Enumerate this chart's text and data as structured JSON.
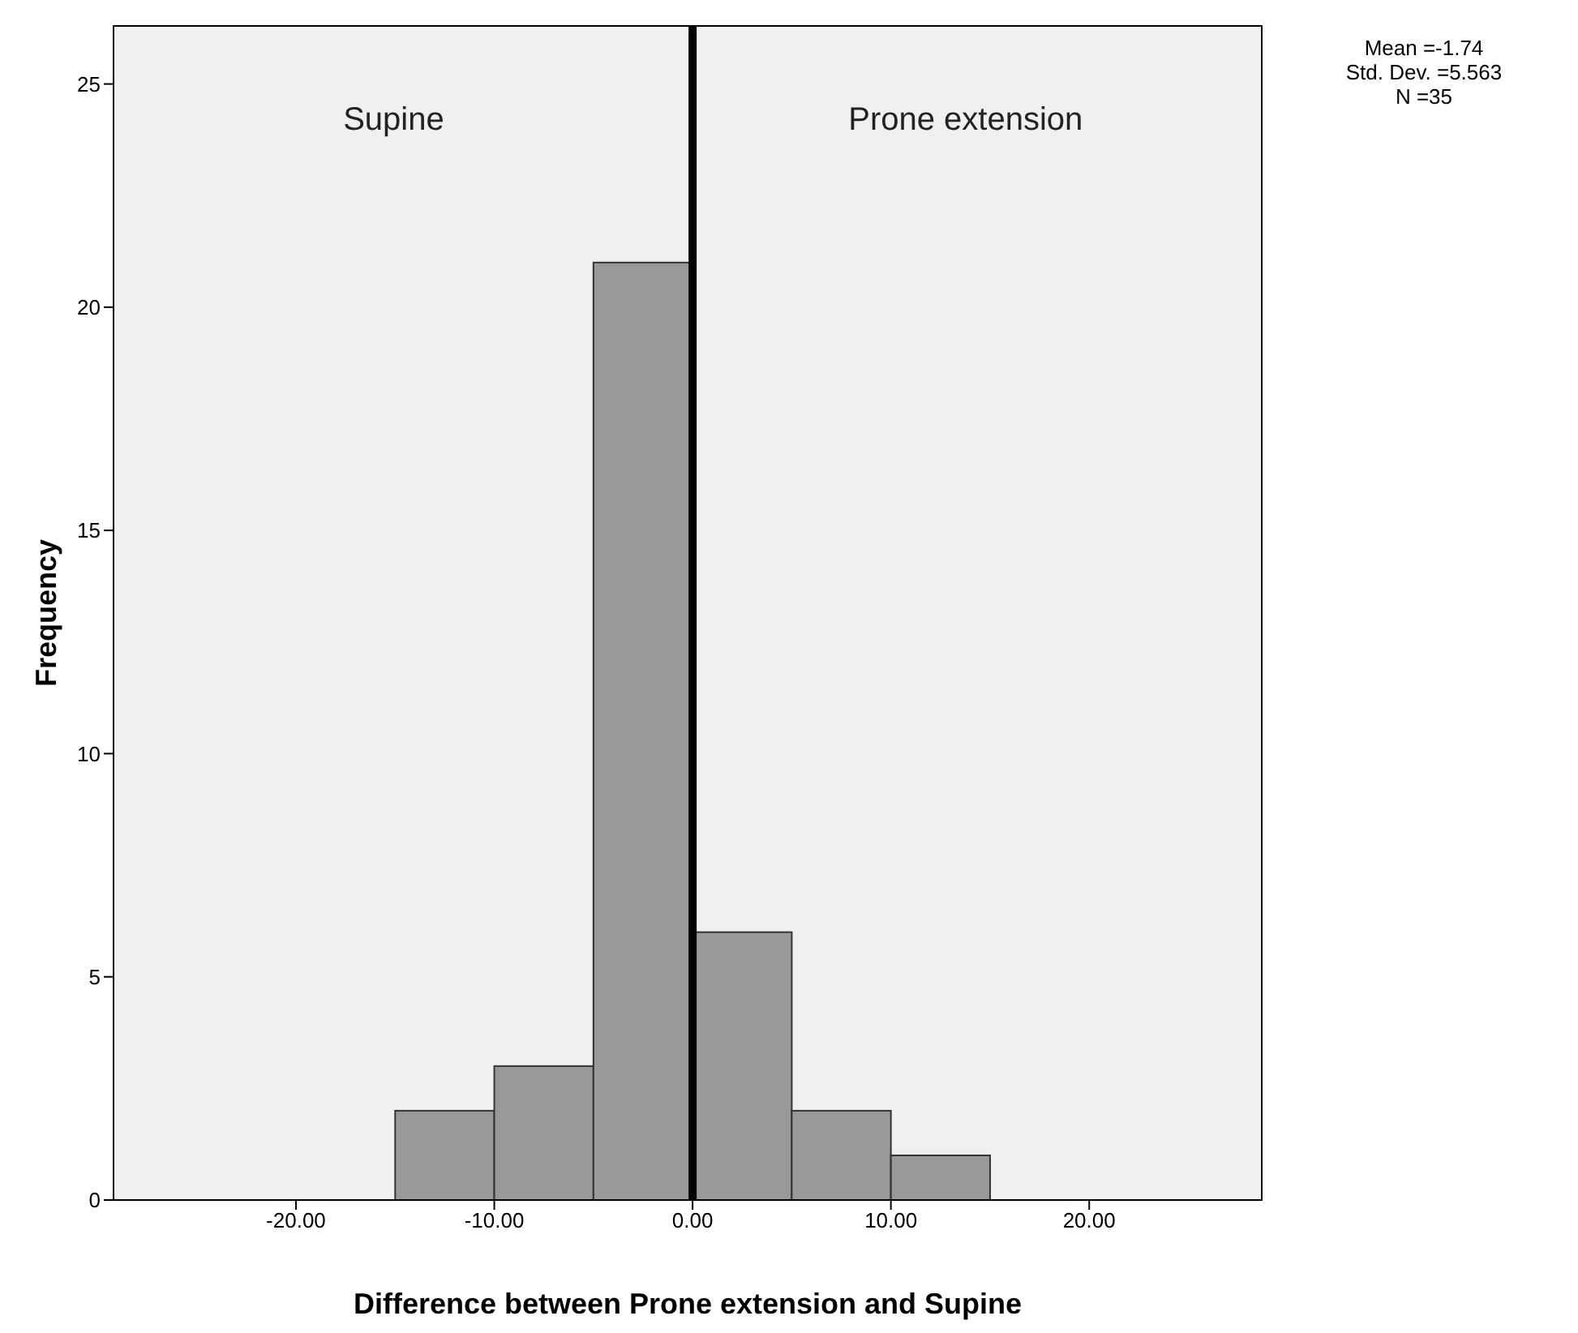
{
  "chart_data": {
    "type": "histogram",
    "xlabel": "Difference between Prone extension and Supine",
    "ylabel": "Frequency",
    "bins": [
      -15,
      -10,
      -5,
      0,
      5,
      10,
      15
    ],
    "values": [
      2,
      3,
      21,
      6,
      2,
      1
    ],
    "color": "#999999",
    "xlim": [
      -29.2,
      28.7
    ],
    "xticks": [
      {
        "value": -20,
        "label": "-20.00"
      },
      {
        "value": -10,
        "label": "-10.00"
      },
      {
        "value": 0,
        "label": "0.00"
      },
      {
        "value": 10,
        "label": "10.00"
      },
      {
        "value": 20,
        "label": "20.00"
      }
    ],
    "ylim": [
      0,
      26.3
    ],
    "yticks": [
      0,
      5,
      10,
      15,
      20,
      25
    ],
    "ref_lines": [
      {
        "axis": "x",
        "value": 0,
        "color": "#000000"
      }
    ],
    "annotations": [
      "Supine",
      "Prone extension",
      "Mean =-1.74",
      "Std. Dev. =5.563",
      "N =35"
    ]
  }
}
